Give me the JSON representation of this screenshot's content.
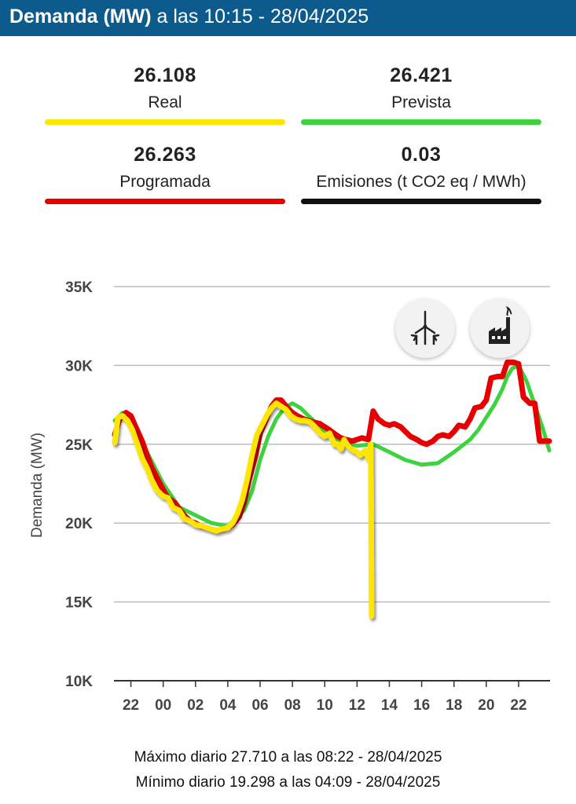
{
  "header": {
    "title_main": "Demanda (MW)",
    "title_rest": " a las 10:15 - 28/04/2025"
  },
  "cards": [
    {
      "value": "26.108",
      "label": "Real",
      "color": "#ffe600"
    },
    {
      "value": "26.421",
      "label": "Prevista",
      "color": "#3fd23f"
    },
    {
      "value": "26.263",
      "label": "Programada",
      "color": "#e60000"
    },
    {
      "value": "0.03",
      "label": "Emisiones (t CO2 eq / MWh)",
      "color": "#111111"
    }
  ],
  "icons": {
    "left": "wind-turbines-icon",
    "right": "factory-icon"
  },
  "chart_data": {
    "type": "line",
    "ylabel": "Demanda (MW)",
    "y_ticks": [
      "10K",
      "15K",
      "20K",
      "25K",
      "30K",
      "35K"
    ],
    "ylim": [
      10000,
      35000
    ],
    "x_ticks": [
      "22",
      "00",
      "02",
      "04",
      "06",
      "08",
      "10",
      "12",
      "14",
      "16",
      "18",
      "20",
      "22"
    ],
    "x_range_hours": [
      21.0,
      47.9
    ],
    "series": [
      {
        "name": "Real",
        "color": "#ffe600",
        "x": [
          21.0,
          21.2,
          21.5,
          21.8,
          22.1,
          22.4,
          22.7,
          23.0,
          23.3,
          23.6,
          24.0,
          24.3,
          24.6,
          25.0,
          25.3,
          25.7,
          26.0,
          26.4,
          26.7,
          27.0,
          27.3,
          27.6,
          28.0,
          28.3,
          28.6,
          28.9,
          29.2,
          29.5,
          29.8,
          30.1,
          30.4,
          30.7,
          31.0,
          31.3,
          31.6,
          31.9,
          32.2,
          32.5,
          32.8,
          33.1,
          33.4,
          33.7,
          34.0,
          34.3,
          34.6,
          34.8,
          35.0,
          35.2,
          35.5,
          35.8,
          36.0,
          36.2,
          36.5,
          36.7,
          36.85,
          36.9
        ],
        "values": [
          25100,
          26700,
          26800,
          26500,
          25900,
          25000,
          24100,
          23500,
          22700,
          22100,
          21700,
          21600,
          21000,
          20800,
          20300,
          20100,
          19900,
          19800,
          19700,
          19600,
          19500,
          19600,
          19700,
          20000,
          20600,
          21500,
          22800,
          24300,
          25600,
          26200,
          26800,
          27300,
          27600,
          27400,
          27200,
          26800,
          26600,
          26500,
          26500,
          26400,
          26100,
          25700,
          25500,
          25700,
          25000,
          25000,
          24700,
          25300,
          24800,
          24600,
          24500,
          24300,
          24600,
          24100,
          25000,
          14100
        ]
      },
      {
        "name": "Prevista",
        "color": "#3fd23f",
        "x": [
          21.0,
          21.5,
          22.0,
          23.0,
          24.0,
          25.0,
          26.0,
          27.0,
          28.0,
          29.0,
          29.5,
          30.0,
          30.5,
          31.0,
          31.5,
          32.0,
          32.5,
          33.0,
          34.0,
          35.0,
          36.0,
          37.0,
          38.0,
          39.0,
          40.0,
          41.0,
          42.0,
          43.0,
          43.5,
          44.0,
          44.5,
          45.0,
          45.3,
          45.6,
          46.0,
          46.5,
          47.0,
          47.5,
          47.9
        ],
        "values": [
          26500,
          27000,
          26600,
          24500,
          22500,
          21000,
          20500,
          20000,
          19800,
          20800,
          22000,
          24000,
          25500,
          26600,
          27300,
          27600,
          27300,
          26800,
          25800,
          25200,
          24900,
          25000,
          24500,
          24000,
          23700,
          23800,
          24500,
          25300,
          25900,
          26700,
          27500,
          28500,
          29300,
          29800,
          30000,
          29000,
          27500,
          26000,
          24600
        ]
      },
      {
        "name": "Programada",
        "color": "#e60000",
        "x": [
          21.0,
          21.3,
          21.7,
          22.0,
          22.3,
          22.7,
          23.0,
          23.3,
          23.7,
          24.0,
          24.3,
          24.7,
          25.0,
          25.3,
          25.7,
          26.0,
          26.3,
          26.7,
          27.0,
          27.3,
          27.7,
          28.0,
          28.3,
          28.7,
          29.0,
          29.3,
          29.7,
          30.0,
          30.3,
          30.7,
          31.0,
          31.3,
          31.7,
          32.0,
          32.3,
          32.7,
          33.0,
          33.3,
          33.7,
          34.0,
          34.3,
          34.7,
          35.0,
          35.3,
          35.7,
          36.0,
          36.3,
          36.7,
          37.0,
          37.3,
          37.7,
          38.0,
          38.3,
          38.7,
          39.0,
          39.3,
          39.7,
          40.0,
          40.3,
          40.7,
          41.0,
          41.3,
          41.7,
          42.0,
          42.3,
          42.7,
          43.0,
          43.3,
          43.7,
          44.0,
          44.3,
          44.7,
          45.0,
          45.3,
          45.7,
          46.0,
          46.3,
          46.7,
          47.0,
          47.3,
          47.7,
          47.9
        ],
        "values": [
          25600,
          26600,
          27000,
          26800,
          26100,
          25200,
          24300,
          23500,
          22700,
          22100,
          21600,
          21300,
          20900,
          20500,
          20100,
          20000,
          19800,
          19700,
          19600,
          19500,
          19600,
          19700,
          19900,
          20400,
          21300,
          22700,
          24200,
          25700,
          26400,
          27400,
          27800,
          27800,
          27300,
          27000,
          26800,
          26600,
          26500,
          26400,
          26300,
          26100,
          25900,
          25600,
          25400,
          25300,
          25200,
          25300,
          25400,
          25300,
          27100,
          26600,
          26300,
          26200,
          26300,
          26100,
          25800,
          25500,
          25300,
          25100,
          25000,
          25200,
          25500,
          25600,
          25500,
          25800,
          26200,
          26100,
          26600,
          27300,
          27400,
          27800,
          29200,
          29300,
          29300,
          30200,
          30200,
          30100,
          28000,
          27600,
          27600,
          25200,
          25200,
          25200
        ]
      }
    ],
    "annotations": [
      "Máximo diario 27.710 a las 08:22 - 28/04/2025",
      "Mínimo diario 19.298 a las 04:09 - 28/04/2025"
    ]
  }
}
